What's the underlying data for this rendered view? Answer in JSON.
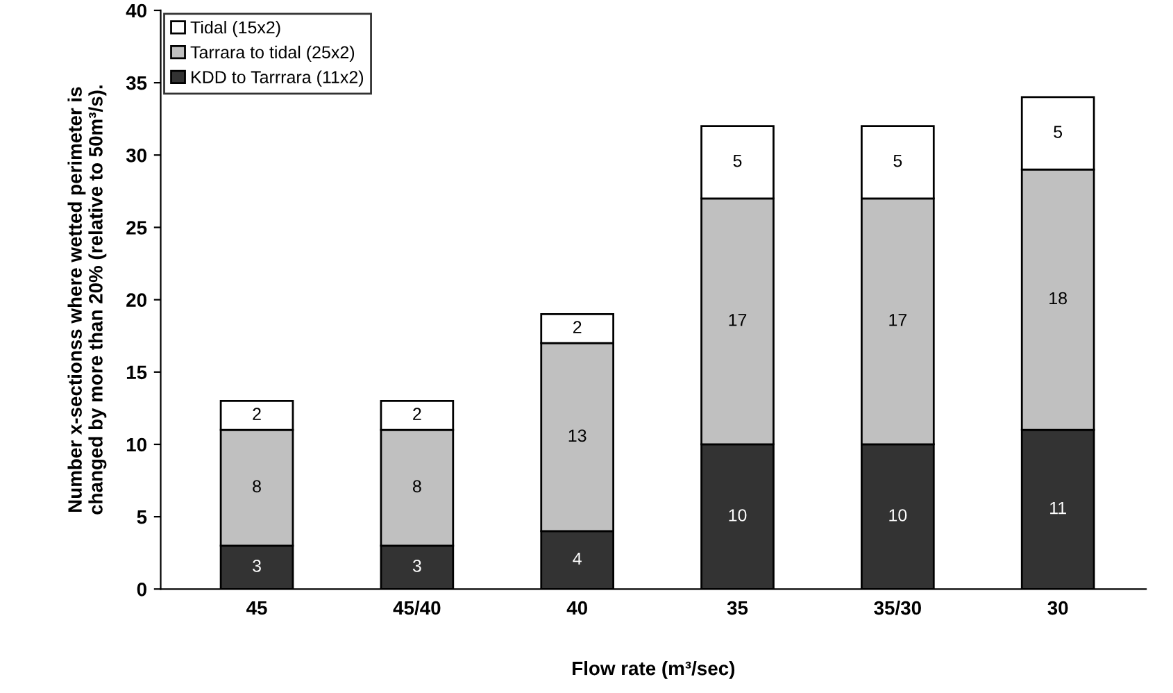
{
  "chart_data": {
    "type": "bar",
    "stacked": true,
    "xlabel": "Flow rate (m³/sec)",
    "ylabel": "Number x-sectionss where wetted perimeter is\nchanged by more than 20% (relative to 50m³/s).",
    "categories": [
      "45",
      "45/40",
      "40",
      "35",
      "35/30",
      "30"
    ],
    "series": [
      {
        "name": "KDD to Tarrrara (11x2)",
        "color": "#333333",
        "values": [
          3,
          3,
          4,
          10,
          10,
          11
        ]
      },
      {
        "name": "Tarrara to tidal (25x2)",
        "color": "#c0c0c0",
        "values": [
          8,
          8,
          13,
          17,
          17,
          18
        ]
      },
      {
        "name": "Tidal (15x2)",
        "color": "#ffffff",
        "values": [
          2,
          2,
          2,
          5,
          5,
          5
        ]
      }
    ],
    "ylim": [
      0,
      40
    ],
    "yticks": [
      0,
      5,
      10,
      15,
      20,
      25,
      30,
      35,
      40
    ],
    "data_labels": true,
    "legend": "top left",
    "grid": false
  }
}
